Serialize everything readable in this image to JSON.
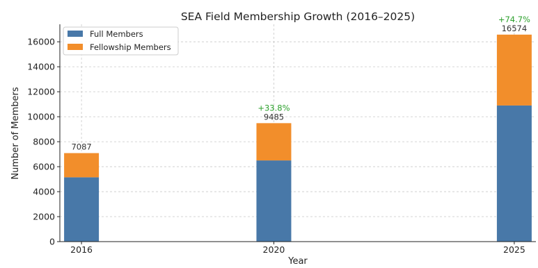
{
  "chart_data": {
    "type": "bar",
    "stacked": true,
    "title": "SEA Field Membership Growth (2016–2025)",
    "xlabel": "Year",
    "ylabel": "Number of Members",
    "x": [
      2016,
      2020,
      2025
    ],
    "x_tick_labels": [
      "2016",
      "2020",
      "2025"
    ],
    "ylim": [
      0,
      17400
    ],
    "y_ticks": [
      0,
      2000,
      4000,
      6000,
      8000,
      10000,
      12000,
      14000,
      16000
    ],
    "grid": true,
    "legend_position": "top-left",
    "series": [
      {
        "name": "Full Members",
        "color": "#4878a8",
        "values": [
          5150,
          6500,
          10900
        ]
      },
      {
        "name": "Fellowship Members",
        "color": "#f28e2b",
        "values": [
          1937,
          2985,
          5674
        ]
      }
    ],
    "totals": [
      "7087",
      "9485",
      "16574"
    ],
    "growth_labels": [
      "",
      "+33.8%",
      "+74.7%"
    ],
    "growth_color": "#2ca02c"
  }
}
